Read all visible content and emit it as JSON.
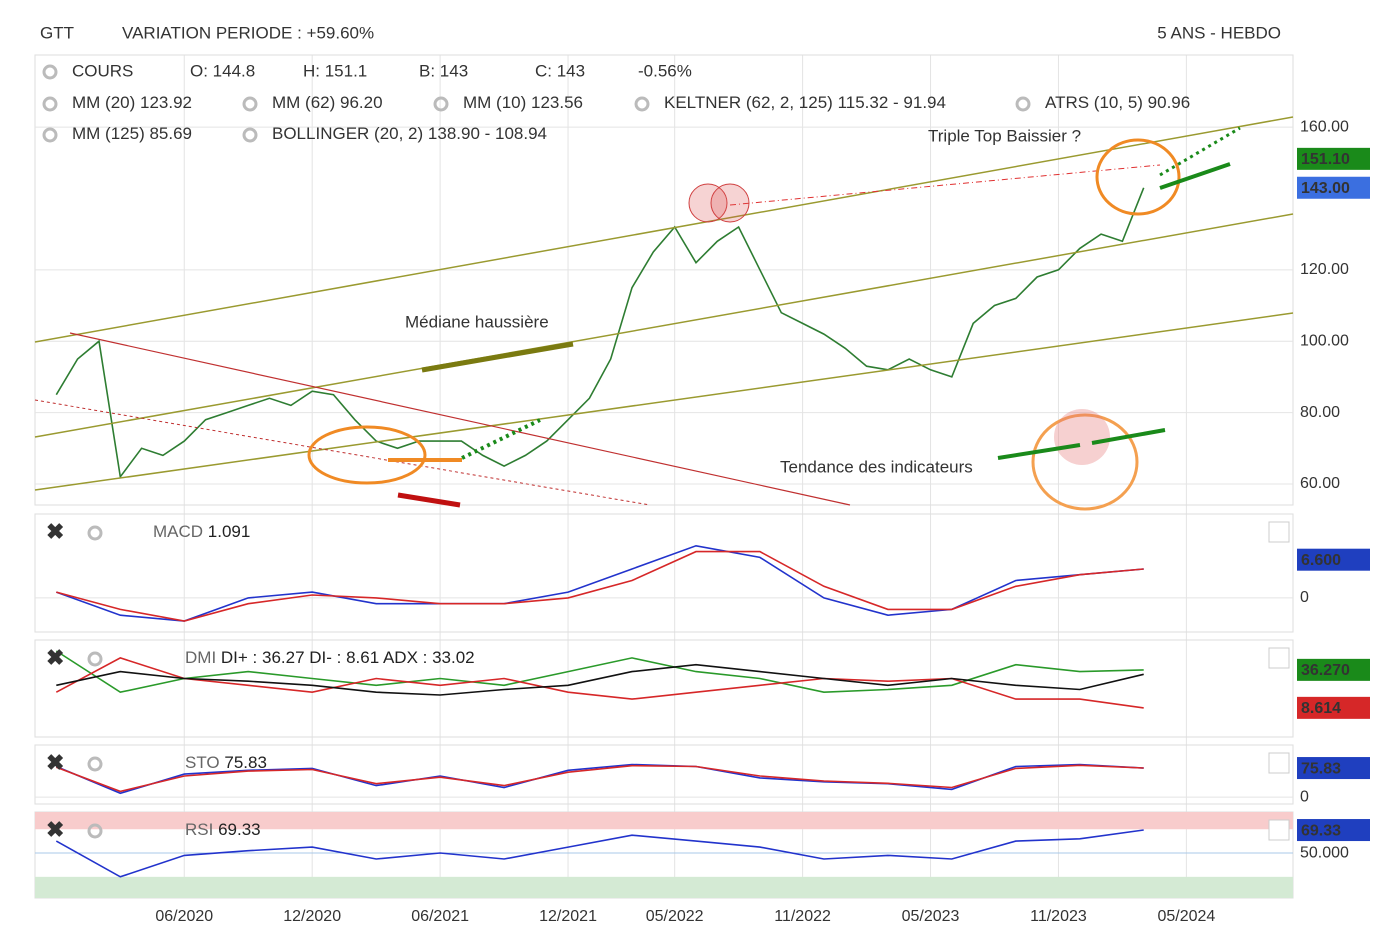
{
  "header": {
    "ticker": "GTT",
    "variation": "VARIATION PERIODE : +59.60%",
    "period": "5 ANS - HEBDO"
  },
  "chart_data": [
    {
      "type": "line",
      "ohlc": [
        "O: 144.8",
        "H: 151.1",
        "B: 143",
        "C: 143"
      ],
      "change": "-0.56%",
      "indicators": [
        {
          "name": "MM (20)",
          "value": "123.92",
          "color": "#e0201b"
        },
        {
          "name": "MM (62)",
          "value": "96.20",
          "color": "#f0a030"
        },
        {
          "name": "MM (10)",
          "value": "123.56",
          "color": "#36c2c9"
        },
        {
          "name": "KELTNER (62, 2, 125)",
          "value": "115.32 - 91.94",
          "color": "#1a8a1a"
        },
        {
          "name": "ATRS (10, 5)",
          "value": "90.96",
          "color": "#f09010"
        },
        {
          "name": "MM (125)",
          "value": "85.69",
          "color": "#22c022"
        },
        {
          "name": "BOLLINGER (20, 2)",
          "value": "138.90 - 108.94",
          "color": "#f0a030"
        }
      ],
      "x": [
        "12/2019",
        "01/2020",
        "02/2020",
        "03/2020",
        "04/2020",
        "05/2020",
        "06/2020",
        "07/2020",
        "08/2020",
        "09/2020",
        "10/2020",
        "11/2020",
        "12/2020",
        "01/2021",
        "02/2021",
        "03/2021",
        "04/2021",
        "05/2021",
        "06/2021",
        "07/2021",
        "08/2021",
        "09/2021",
        "10/2021",
        "11/2021",
        "12/2021",
        "01/2022",
        "02/2022",
        "03/2022",
        "04/2022",
        "05/2022",
        "06/2022",
        "07/2022",
        "08/2022",
        "09/2022",
        "10/2022",
        "11/2022",
        "12/2022",
        "01/2023",
        "02/2023",
        "03/2023",
        "04/2023",
        "05/2023",
        "06/2023",
        "07/2023",
        "08/2023",
        "09/2023",
        "10/2023",
        "11/2023",
        "12/2023",
        "01/2024",
        "02/2024",
        "03/2024"
      ],
      "series": [
        {
          "name": "COURS",
          "color": "#2e7d32",
          "values": [
            85,
            95,
            100,
            62,
            70,
            68,
            72,
            78,
            80,
            82,
            84,
            82,
            86,
            85,
            78,
            72,
            70,
            72,
            72,
            72,
            68,
            65,
            68,
            72,
            78,
            84,
            95,
            115,
            125,
            132,
            122,
            128,
            132,
            120,
            108,
            105,
            102,
            98,
            93,
            92,
            95,
            92,
            90,
            105,
            110,
            112,
            118,
            120,
            126,
            130,
            128,
            143
          ]
        }
      ],
      "xlim": [
        "11/2019",
        "10/2024"
      ],
      "ylim": [
        54.1,
        180.2
      ],
      "yticks": [
        {
          "value": 60,
          "label": "60.00"
        },
        {
          "value": 80,
          "label": "80.00"
        },
        {
          "value": 100,
          "label": "100.00"
        },
        {
          "value": 120,
          "label": "120.00"
        },
        {
          "value": 160,
          "label": "160.00"
        }
      ],
      "xticks": [
        "06/2020",
        "12/2020",
        "06/2021",
        "12/2021",
        "05/2022",
        "11/2022",
        "05/2023",
        "11/2023",
        "05/2024"
      ],
      "badges": [
        {
          "value": 151.1,
          "label": "151.10",
          "color": "#1a8a1a"
        },
        {
          "value": 143,
          "label": "143.00",
          "color": "#3b6fe0"
        }
      ],
      "annotations": [
        {
          "text": "Triple Top Baissier ?",
          "color": "#f08a24"
        },
        {
          "text": "Médiane haussière",
          "color": "#8a8a1a"
        },
        {
          "text": "Tendance des indicateurs",
          "color": "#1f4f9f"
        }
      ]
    },
    {
      "type": "line",
      "label": "MACD",
      "value": "1.091",
      "x": [
        "12/2019",
        "03/2020",
        "06/2020",
        "09/2020",
        "12/2020",
        "03/2021",
        "06/2021",
        "09/2021",
        "12/2021",
        "03/2022",
        "06/2022",
        "09/2022",
        "12/2022",
        "03/2023",
        "06/2023",
        "09/2023",
        "12/2023",
        "03/2024"
      ],
      "series": [
        {
          "color": "#2233cc",
          "values": [
            1,
            -3,
            -4,
            0,
            1,
            -1,
            -1,
            -1,
            1,
            5,
            9,
            7,
            0,
            -3,
            -2,
            3,
            4,
            5
          ]
        },
        {
          "color": "#d62728",
          "values": [
            1,
            -2,
            -4,
            -1,
            0.5,
            0,
            -1,
            -1,
            0,
            3,
            8,
            8,
            2,
            -2,
            -2,
            2,
            4,
            5
          ]
        }
      ],
      "xlim": [
        "11/2019",
        "10/2024"
      ],
      "ylim": [
        -5.9,
        14.5
      ],
      "yticks": [
        0
      ],
      "badges": [
        {
          "value": 6.6,
          "label": "6.600",
          "color": "#1f3fbf"
        }
      ]
    },
    {
      "type": "line",
      "label": "DMI",
      "value": "DI+ : 36.27 DI- : 8.61 ADX : 33.02",
      "x": [
        "12/2019",
        "03/2020",
        "06/2020",
        "09/2020",
        "12/2020",
        "03/2021",
        "06/2021",
        "09/2021",
        "12/2021",
        "03/2022",
        "06/2022",
        "09/2022",
        "12/2022",
        "03/2023",
        "06/2023",
        "09/2023",
        "12/2023",
        "03/2024"
      ],
      "series": [
        {
          "color": "#2a9a2a",
          "values": [
            50,
            20,
            30,
            35,
            30,
            25,
            30,
            25,
            35,
            45,
            35,
            30,
            20,
            22,
            25,
            40,
            35,
            36.27
          ]
        },
        {
          "color": "#d62728",
          "values": [
            20,
            45,
            30,
            25,
            20,
            30,
            25,
            30,
            20,
            15,
            20,
            25,
            30,
            28,
            30,
            15,
            15,
            8.61
          ]
        },
        {
          "color": "#111111",
          "values": [
            25,
            35,
            30,
            28,
            25,
            20,
            18,
            22,
            25,
            35,
            40,
            35,
            30,
            25,
            30,
            25,
            22,
            33.02
          ]
        }
      ],
      "xlim": [
        "11/2019",
        "10/2024"
      ],
      "ylim": [
        -12.6,
        58
      ],
      "yticks": [],
      "badges": [
        {
          "value": 36.27,
          "label": "36.270",
          "color": "#1a8a1a"
        },
        {
          "value": 8.614,
          "label": "8.614",
          "color": "#d62728"
        }
      ]
    },
    {
      "type": "line",
      "label": "STO",
      "value": "75.83",
      "x": [
        "12/2019",
        "03/2020",
        "06/2020",
        "09/2020",
        "12/2020",
        "03/2021",
        "06/2021",
        "09/2021",
        "12/2021",
        "03/2022",
        "06/2022",
        "09/2022",
        "12/2022",
        "03/2023",
        "06/2023",
        "09/2023",
        "12/2023",
        "03/2024"
      ],
      "series": [
        {
          "color": "#2233cc",
          "values": [
            80,
            10,
            60,
            70,
            75,
            30,
            55,
            25,
            70,
            85,
            80,
            50,
            40,
            35,
            20,
            80,
            85,
            75.83
          ]
        },
        {
          "color": "#d62728",
          "values": [
            78,
            15,
            55,
            68,
            72,
            35,
            52,
            30,
            65,
            82,
            80,
            55,
            42,
            36,
            25,
            75,
            83,
            76
          ]
        }
      ],
      "xlim": [
        "11/2019",
        "10/2024"
      ],
      "ylim": [
        -18,
        136
      ],
      "yticks": [
        0
      ],
      "badges": [
        {
          "value": 75.83,
          "label": "75.83",
          "color": "#1f3fbf"
        }
      ]
    },
    {
      "type": "line",
      "label": "RSI",
      "value": "69.33",
      "x": [
        "12/2019",
        "03/2020",
        "06/2020",
        "09/2020",
        "12/2020",
        "03/2021",
        "06/2021",
        "09/2021",
        "12/2021",
        "03/2022",
        "06/2022",
        "09/2022",
        "12/2022",
        "03/2023",
        "06/2023",
        "09/2023",
        "12/2023",
        "03/2024"
      ],
      "series": [
        {
          "color": "#2233cc",
          "values": [
            60,
            30,
            48,
            52,
            55,
            45,
            50,
            45,
            55,
            65,
            60,
            55,
            45,
            48,
            45,
            60,
            62,
            69.33
          ]
        }
      ],
      "xlim": [
        "11/2019",
        "10/2024"
      ],
      "ylim": [
        12.2,
        84.5
      ],
      "yticks": [
        {
          "value": 50,
          "label": "50.000"
        }
      ],
      "zones": [
        {
          "from": 70,
          "to": 84.5,
          "color": "#f8cccc"
        },
        {
          "from": 12.2,
          "to": 30,
          "color": "#d4ead4"
        }
      ],
      "badges": [
        {
          "value": 69.33,
          "label": "69.33",
          "color": "#1f3fbf"
        }
      ]
    }
  ]
}
